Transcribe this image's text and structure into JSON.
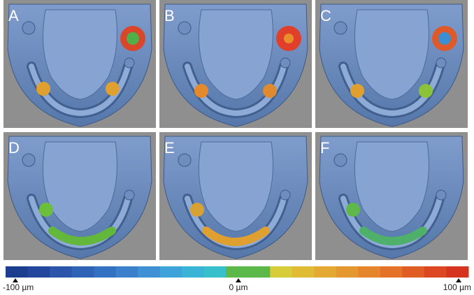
{
  "panels": [
    {
      "label": "A"
    },
    {
      "label": "B"
    },
    {
      "label": "C"
    },
    {
      "label": "D"
    },
    {
      "label": "E"
    },
    {
      "label": "F"
    }
  ],
  "scale": {
    "min": "-100 µm",
    "mid": "0 µm",
    "max": "100 µm"
  }
}
